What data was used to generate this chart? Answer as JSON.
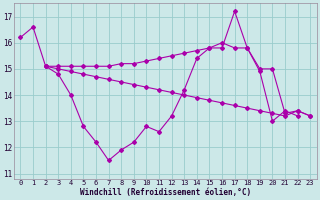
{
  "xlabel": "Windchill (Refroidissement éolien,°C)",
  "background_color": "#cce8e8",
  "grid_color": "#99cccc",
  "line_color": "#aa00aa",
  "ylim": [
    10.8,
    17.5
  ],
  "xlim": [
    -0.5,
    23.5
  ],
  "yticks": [
    11,
    12,
    13,
    14,
    15,
    16,
    17
  ],
  "xticks": [
    0,
    1,
    2,
    3,
    4,
    5,
    6,
    7,
    8,
    9,
    10,
    11,
    12,
    13,
    14,
    15,
    16,
    17,
    18,
    19,
    20,
    21,
    22,
    23
  ],
  "series1_x": [
    0,
    1,
    2,
    3,
    4,
    5,
    6,
    7,
    8,
    9,
    10,
    11,
    12,
    13,
    14,
    15,
    16,
    17,
    18,
    19,
    20,
    21,
    22
  ],
  "series1_y": [
    16.2,
    16.6,
    15.1,
    14.8,
    14.0,
    12.8,
    12.2,
    11.5,
    11.9,
    12.2,
    12.8,
    12.6,
    13.2,
    14.2,
    15.4,
    15.8,
    15.8,
    17.2,
    15.8,
    14.9,
    13.0,
    13.4,
    13.2
  ],
  "series2_x": [
    2,
    3,
    4,
    5,
    6,
    7,
    8,
    9,
    10,
    11,
    12,
    13,
    14,
    15,
    16,
    17,
    18,
    19,
    20,
    21,
    22,
    23
  ],
  "series2_y": [
    15.1,
    15.0,
    14.9,
    14.8,
    14.7,
    14.6,
    14.5,
    14.4,
    14.3,
    14.2,
    14.1,
    14.0,
    13.9,
    13.8,
    13.7,
    13.6,
    13.5,
    13.4,
    13.3,
    13.2,
    13.4,
    13.2
  ],
  "series3_x": [
    2,
    3,
    4,
    5,
    6,
    7,
    8,
    9,
    10,
    11,
    12,
    13,
    14,
    15,
    16,
    17,
    18,
    19,
    20,
    21,
    22,
    23
  ],
  "series3_y": [
    15.1,
    15.1,
    15.1,
    15.1,
    15.1,
    15.1,
    15.2,
    15.2,
    15.3,
    15.4,
    15.5,
    15.6,
    15.7,
    15.8,
    16.0,
    15.8,
    15.8,
    15.0,
    15.0,
    13.3,
    13.4,
    13.2
  ]
}
